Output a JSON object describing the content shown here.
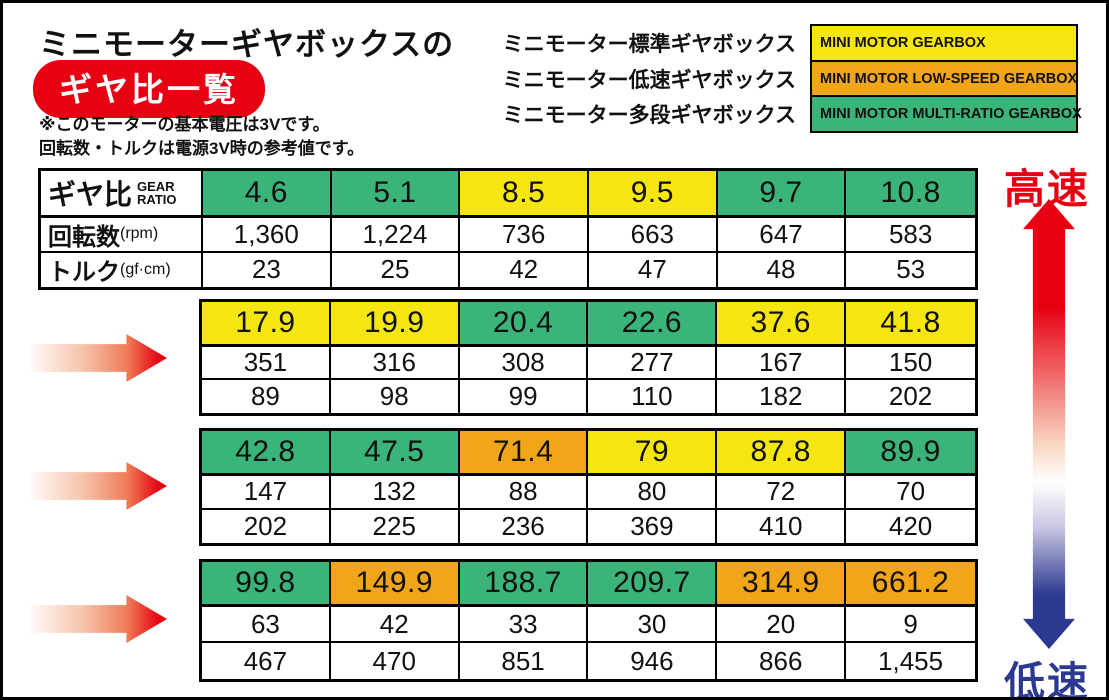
{
  "colors": {
    "standard": "#f5e511",
    "low": "#f0a51a",
    "multi": "#3ab478",
    "red": "#e60012",
    "blue": "#2b3990"
  },
  "title": {
    "line1": "ミニモーターギヤボックスの",
    "badge": "ギヤ比一覧"
  },
  "note": {
    "line1": "※このモーターの基本電圧は3Vです。",
    "line2": "回転数・トルクは電源3V時の参考値です。"
  },
  "legend": {
    "items": [
      {
        "jp": "ミニモーター標準ギヤボックス",
        "en": "MINI MOTOR GEARBOX",
        "type": "standard"
      },
      {
        "jp": "ミニモーター低速ギヤボックス",
        "en": "MINI MOTOR LOW-SPEED GEARBOX",
        "type": "low"
      },
      {
        "jp": "ミニモーター多段ギヤボックス",
        "en": "MINI MOTOR MULTI-RATIO GEARBOX",
        "type": "multi"
      }
    ]
  },
  "row_labels": {
    "gear_ratio_jp": "ギヤ比",
    "gear_ratio_en_line1": "GEAR",
    "gear_ratio_en_line2": "RATIO",
    "rpm_jp": "回転数",
    "rpm_unit": "(rpm)",
    "torque_jp": "トルク",
    "torque_unit": "(gf·cm)"
  },
  "speed_scale": {
    "high": "高速",
    "low": "低速"
  },
  "tables": [
    {
      "columns": [
        {
          "ratio": "4.6",
          "type": "multi",
          "rpm": "1,360",
          "torque": "23"
        },
        {
          "ratio": "5.1",
          "type": "multi",
          "rpm": "1,224",
          "torque": "25"
        },
        {
          "ratio": "8.5",
          "type": "standard",
          "rpm": "736",
          "torque": "42"
        },
        {
          "ratio": "9.5",
          "type": "standard",
          "rpm": "663",
          "torque": "47"
        },
        {
          "ratio": "9.7",
          "type": "multi",
          "rpm": "647",
          "torque": "48"
        },
        {
          "ratio": "10.8",
          "type": "multi",
          "rpm": "583",
          "torque": "53"
        }
      ]
    },
    {
      "columns": [
        {
          "ratio": "17.9",
          "type": "standard",
          "rpm": "351",
          "torque": "89"
        },
        {
          "ratio": "19.9",
          "type": "standard",
          "rpm": "316",
          "torque": "98"
        },
        {
          "ratio": "20.4",
          "type": "multi",
          "rpm": "308",
          "torque": "99"
        },
        {
          "ratio": "22.6",
          "type": "multi",
          "rpm": "277",
          "torque": "110"
        },
        {
          "ratio": "37.6",
          "type": "standard",
          "rpm": "167",
          "torque": "182"
        },
        {
          "ratio": "41.8",
          "type": "standard",
          "rpm": "150",
          "torque": "202"
        }
      ]
    },
    {
      "columns": [
        {
          "ratio": "42.8",
          "type": "multi",
          "rpm": "147",
          "torque": "202"
        },
        {
          "ratio": "47.5",
          "type": "multi",
          "rpm": "132",
          "torque": "225"
        },
        {
          "ratio": "71.4",
          "type": "low",
          "rpm": "88",
          "torque": "236"
        },
        {
          "ratio": "79",
          "type": "standard",
          "rpm": "80",
          "torque": "369"
        },
        {
          "ratio": "87.8",
          "type": "standard",
          "rpm": "72",
          "torque": "410"
        },
        {
          "ratio": "89.9",
          "type": "multi",
          "rpm": "70",
          "torque": "420"
        }
      ]
    },
    {
      "columns": [
        {
          "ratio": "99.8",
          "type": "multi",
          "rpm": "63",
          "torque": "467"
        },
        {
          "ratio": "149.9",
          "type": "low",
          "rpm": "42",
          "torque": "470"
        },
        {
          "ratio": "188.7",
          "type": "multi",
          "rpm": "33",
          "torque": "851"
        },
        {
          "ratio": "209.7",
          "type": "multi",
          "rpm": "30",
          "torque": "946"
        },
        {
          "ratio": "314.9",
          "type": "low",
          "rpm": "20",
          "torque": "866"
        },
        {
          "ratio": "661.2",
          "type": "low",
          "rpm": "9",
          "torque": "1,455"
        }
      ]
    }
  ],
  "chart_data": {
    "type": "table",
    "title": "ミニモーターギヤボックスの ギヤ比一覧",
    "notes": [
      "※このモーターの基本電圧は3Vです。",
      "回転数・トルクは電源3V時の参考値です。"
    ],
    "legend": [
      {
        "label_jp": "ミニモーター標準ギヤボックス",
        "label_en": "MINI MOTOR GEARBOX",
        "color": "#f5e511"
      },
      {
        "label_jp": "ミニモーター低速ギヤボックス",
        "label_en": "MINI MOTOR LOW-SPEED GEARBOX",
        "color": "#f0a51a"
      },
      {
        "label_jp": "ミニモーター多段ギヤボックス",
        "label_en": "MINI MOTOR MULTI-RATIO GEARBOX",
        "color": "#3ab478"
      }
    ],
    "row_headers": [
      "ギヤ比 GEAR RATIO",
      "回転数(rpm)",
      "トルク(gf·cm)"
    ],
    "scale_labels": {
      "top": "高速",
      "bottom": "低速"
    },
    "gear_ratio": [
      4.6,
      5.1,
      8.5,
      9.5,
      9.7,
      10.8,
      17.9,
      19.9,
      20.4,
      22.6,
      37.6,
      41.8,
      42.8,
      47.5,
      71.4,
      79,
      87.8,
      89.9,
      99.8,
      149.9,
      188.7,
      209.7,
      314.9,
      661.2
    ],
    "rpm": [
      1360,
      1224,
      736,
      663,
      647,
      583,
      351,
      316,
      308,
      277,
      167,
      150,
      147,
      132,
      88,
      80,
      72,
      70,
      63,
      42,
      33,
      30,
      20,
      9
    ],
    "torque_gf_cm": [
      23,
      25,
      42,
      47,
      48,
      53,
      89,
      98,
      99,
      110,
      182,
      202,
      202,
      225,
      236,
      369,
      410,
      420,
      467,
      470,
      851,
      946,
      866,
      1455
    ],
    "gearbox_type": [
      "multi",
      "multi",
      "standard",
      "standard",
      "multi",
      "multi",
      "standard",
      "standard",
      "multi",
      "multi",
      "standard",
      "standard",
      "multi",
      "multi",
      "low",
      "standard",
      "standard",
      "multi",
      "multi",
      "low",
      "multi",
      "multi",
      "low",
      "low"
    ]
  }
}
